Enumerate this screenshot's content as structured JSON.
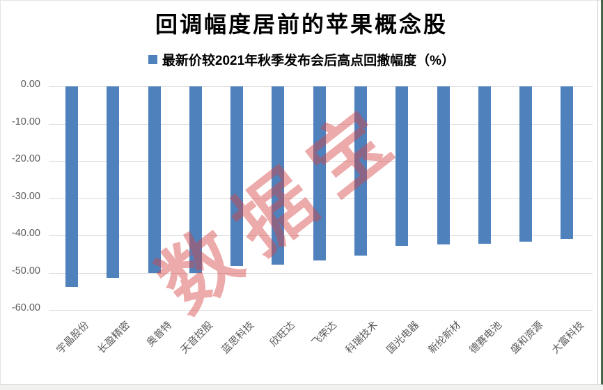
{
  "watermark": {
    "text": "数据宝",
    "color": "rgba(213,66,66,0.45)"
  },
  "window": {
    "right_divider_color": "#cccccc",
    "edge_color": "#47674a",
    "bottom_strip_color": "#f1f1ef"
  },
  "chart_data": {
    "type": "bar",
    "title": "回调幅度居前的苹果概念股",
    "legend": [
      {
        "label": "最新价较2021年秋季发布会后高点回撤幅度（%）",
        "color": "#4f81bd"
      }
    ],
    "legend_position": "top",
    "categories": [
      "宇晶股份",
      "长盈精密",
      "奥普特",
      "天音控股",
      "蓝思科技",
      "欣旺达",
      "飞荣达",
      "科瑞技术",
      "国光电器",
      "新纶新材",
      "德赛电池",
      "盛和资源",
      "大富科技"
    ],
    "values": [
      -53.8,
      -51.4,
      -50.1,
      -50.0,
      -48.3,
      -47.9,
      -46.8,
      -45.4,
      -42.8,
      -42.4,
      -42.2,
      -41.6,
      -40.9
    ],
    "xlabel": "",
    "ylabel": "",
    "ylim": [
      -60,
      0
    ],
    "ytick_labels": [
      "0.00",
      "-10.00",
      "-20.00",
      "-30.00",
      "-40.00",
      "-50.00",
      "-60.00"
    ],
    "grid": true,
    "x_label_rotation_deg": 45,
    "bar_color": "#4f81bd",
    "gridline_color": "#d9d9d9",
    "axis_text_color": "#595959"
  }
}
